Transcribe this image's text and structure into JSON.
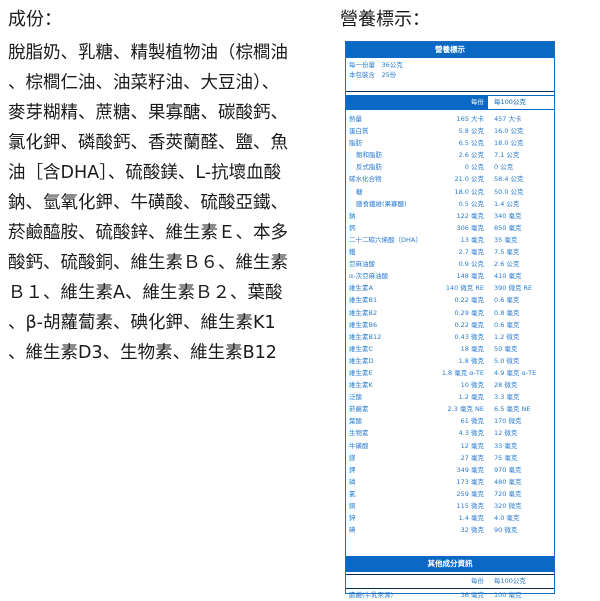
{
  "ingredients": {
    "title": "成份：",
    "lines": [
      "脫脂奶、乳糖、精製植物油（棕櫚油",
      "、棕櫚仁油、油菜籽油、大豆油）、",
      "麥芽糊精、蔗糖、果寡醣、碳酸鈣、",
      "氯化鉀、磷酸鈣、香莢蘭醛、鹽、魚",
      "油［含DHA］、硫酸鎂、L-抗壞血酸",
      "鈉、氫氧化鉀、牛磺酸、硫酸亞鐵、",
      "菸鹼醯胺、硫酸鋅、維生素Ｅ、本多",
      "酸鈣、硫酸銅、維生素Ｂ６、維生素",
      "Ｂ１、維生素A、維生素Ｂ２、葉酸",
      "、β-胡蘿蔔素、碘化鉀、維生素K1",
      "、維生素D3、生物素、維生素B12"
    ]
  },
  "nutrition": {
    "title": "營養標示：",
    "header": "營養標示",
    "serving_size": "每一份量　36公克",
    "servings": "本包裝含　25份",
    "col_per_serving": "每份",
    "col_per_100g": "每100公克",
    "rows": [
      [
        "熱量",
        "165 大卡",
        "457 大卡",
        0
      ],
      [
        "蛋白質",
        "5.8 公克",
        "16.0 公克",
        0
      ],
      [
        "脂肪",
        "6.5 公克",
        "18.0 公克",
        0
      ],
      [
        "飽和脂肪",
        "2.6 公克",
        "7.1 公克",
        1
      ],
      [
        "反式脂肪",
        "0 公克",
        "0 公克",
        1
      ],
      [
        "碳水化合物",
        "21.0 公克",
        "58.4 公克",
        0
      ],
      [
        "糖",
        "18.0 公克",
        "50.0 公克",
        1
      ],
      [
        "膳食纖維(果寡醣)",
        "0.5 公克",
        "1.4 公克",
        1
      ],
      [
        "鈉",
        "122 毫克",
        "340 毫克",
        0
      ],
      [
        "鈣",
        "306 毫克",
        "850 毫克",
        0
      ],
      [
        "二十二碳六烯酸（DHA）",
        "13 毫克",
        "35 毫克",
        0
      ],
      [
        "鐵",
        "2.7 毫克",
        "7.5 毫克",
        0
      ],
      [
        "亞麻油酸",
        "0.9 公克",
        "2.6 公克",
        0
      ],
      [
        "α-次亞麻油酸",
        "148 毫克",
        "410 毫克",
        0
      ],
      [
        "維生素A",
        "140 微克 RE",
        "390 微克 RE",
        0
      ],
      [
        "維生素B1",
        "0.22 毫克",
        "0.6 毫克",
        0
      ],
      [
        "維生素B2",
        "0.29 毫克",
        "0.8 毫克",
        0
      ],
      [
        "維生素B6",
        "0.22 毫克",
        "0.6 毫克",
        0
      ],
      [
        "維生素B12",
        "0.43 微克",
        "1.2 微克",
        0
      ],
      [
        "維生素C",
        "18 毫克",
        "50 毫克",
        0
      ],
      [
        "維生素D",
        "1.8 微克",
        "5.0 微克",
        0
      ],
      [
        "維生素E",
        "1.8 毫克 α-TE",
        "4.9 毫克 α-TE",
        0
      ],
      [
        "維生素K",
        "10 微克",
        "28 微克",
        0
      ],
      [
        "泛酸",
        "1.2 毫克",
        "3.3 毫克",
        0
      ],
      [
        "菸鹼素",
        "2.3 毫克 NE",
        "6.5 毫克 NE",
        0
      ],
      [
        "葉酸",
        "61 微克",
        "170 微克",
        0
      ],
      [
        "生物素",
        "4.3 微克",
        "12 微克",
        0
      ],
      [
        "牛磺酸",
        "12 毫克",
        "33 毫克",
        0
      ],
      [
        "鎂",
        "27 毫克",
        "75 毫克",
        0
      ],
      [
        "鉀",
        "349 毫克",
        "970 毫克",
        0
      ],
      [
        "磷",
        "173 毫克",
        "480 毫克",
        0
      ],
      [
        "氯",
        "259 毫克",
        "720 毫克",
        0
      ],
      [
        "銅",
        "115 微克",
        "320 微克",
        0
      ],
      [
        "鋅",
        "1.4 毫克",
        "4.0 毫克",
        0
      ],
      [
        "碘",
        "32 微克",
        "90 微克",
        0
      ]
    ],
    "other_header": "其他成分資訊",
    "other_rows": [
      [
        "膽鹼(牛乳來源)",
        "36 毫克",
        "100 毫克"
      ]
    ],
    "accent_color": "#0a69c4"
  }
}
